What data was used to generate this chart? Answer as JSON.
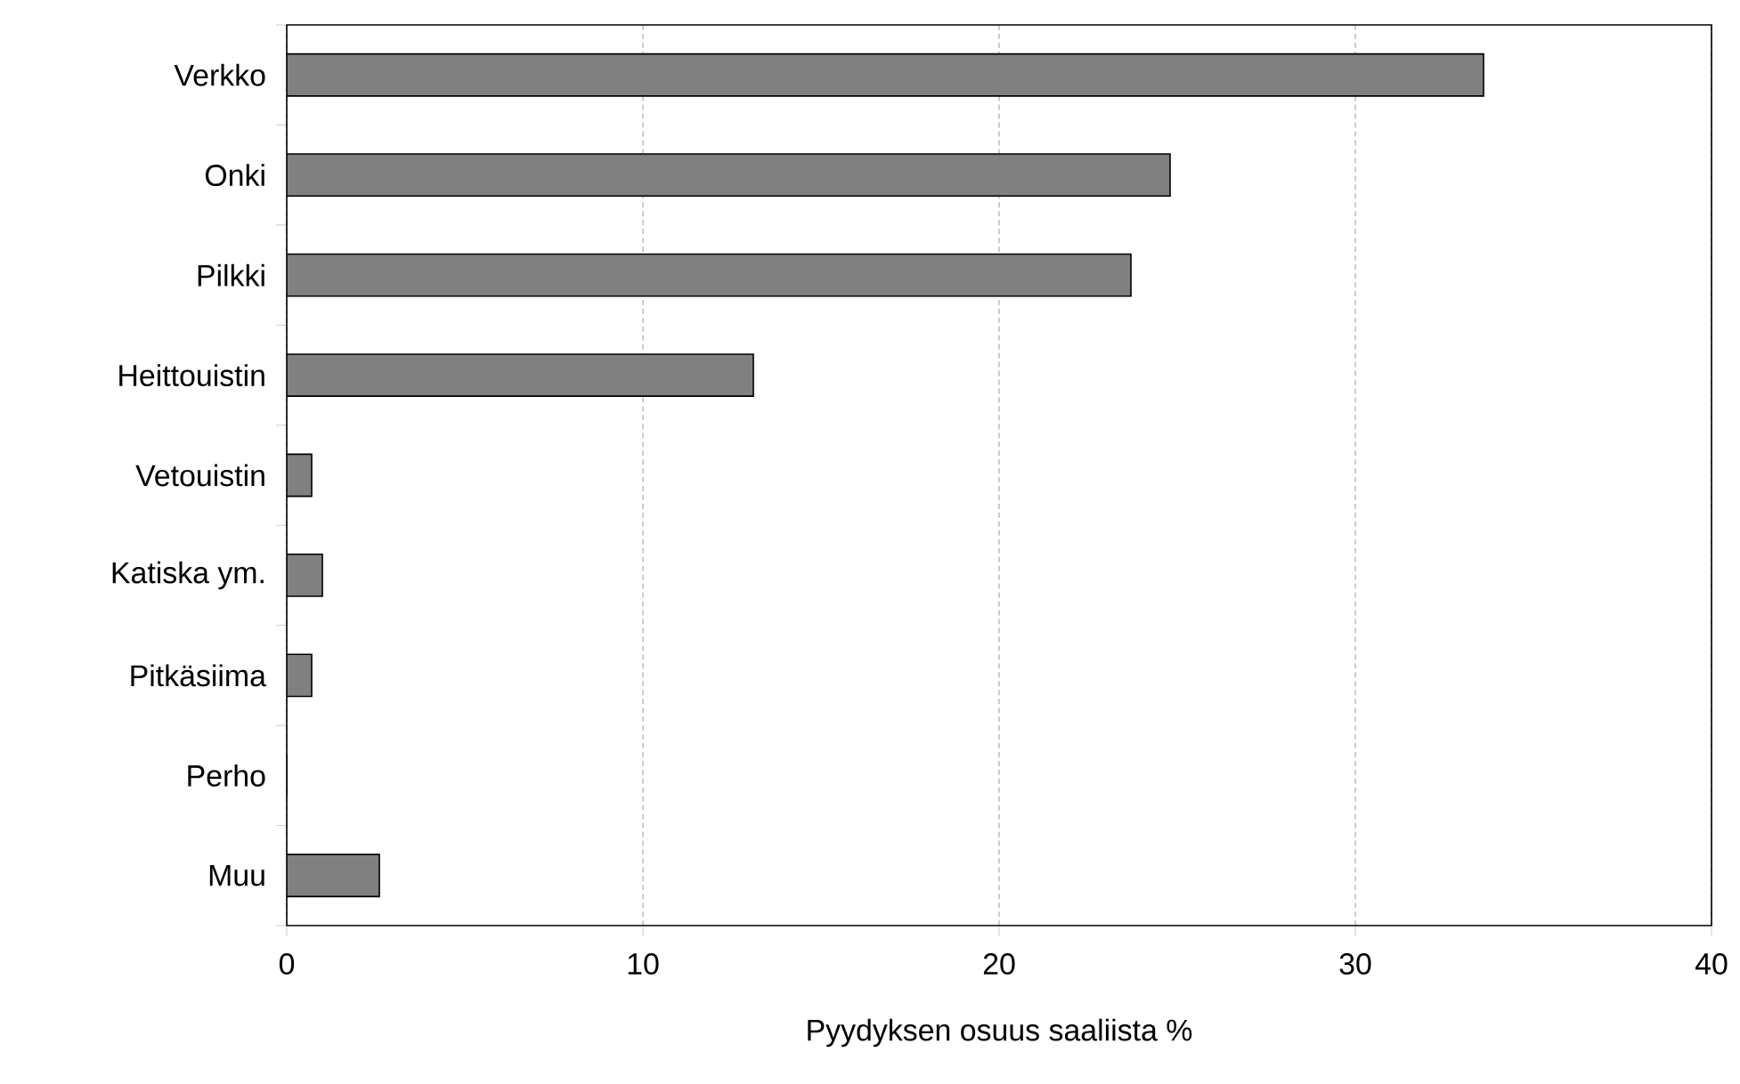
{
  "chart_data": {
    "type": "bar",
    "orientation": "horizontal",
    "xlabel": "Pyydyksen osuus saaliista %",
    "categories": [
      "Verkko",
      "Onki",
      "Pilkki",
      "Heittouistin",
      "Vetouistin",
      "Katiska ym.",
      "Pitkäsiima",
      "Perho",
      "Muu"
    ],
    "values": [
      33.6,
      24.8,
      23.7,
      13.1,
      0.7,
      1.0,
      0.7,
      0,
      2.6
    ],
    "color": "#808080",
    "xlim": [
      0,
      40
    ],
    "xticks": [
      0,
      10,
      20,
      30,
      40
    ],
    "grid": "x"
  }
}
